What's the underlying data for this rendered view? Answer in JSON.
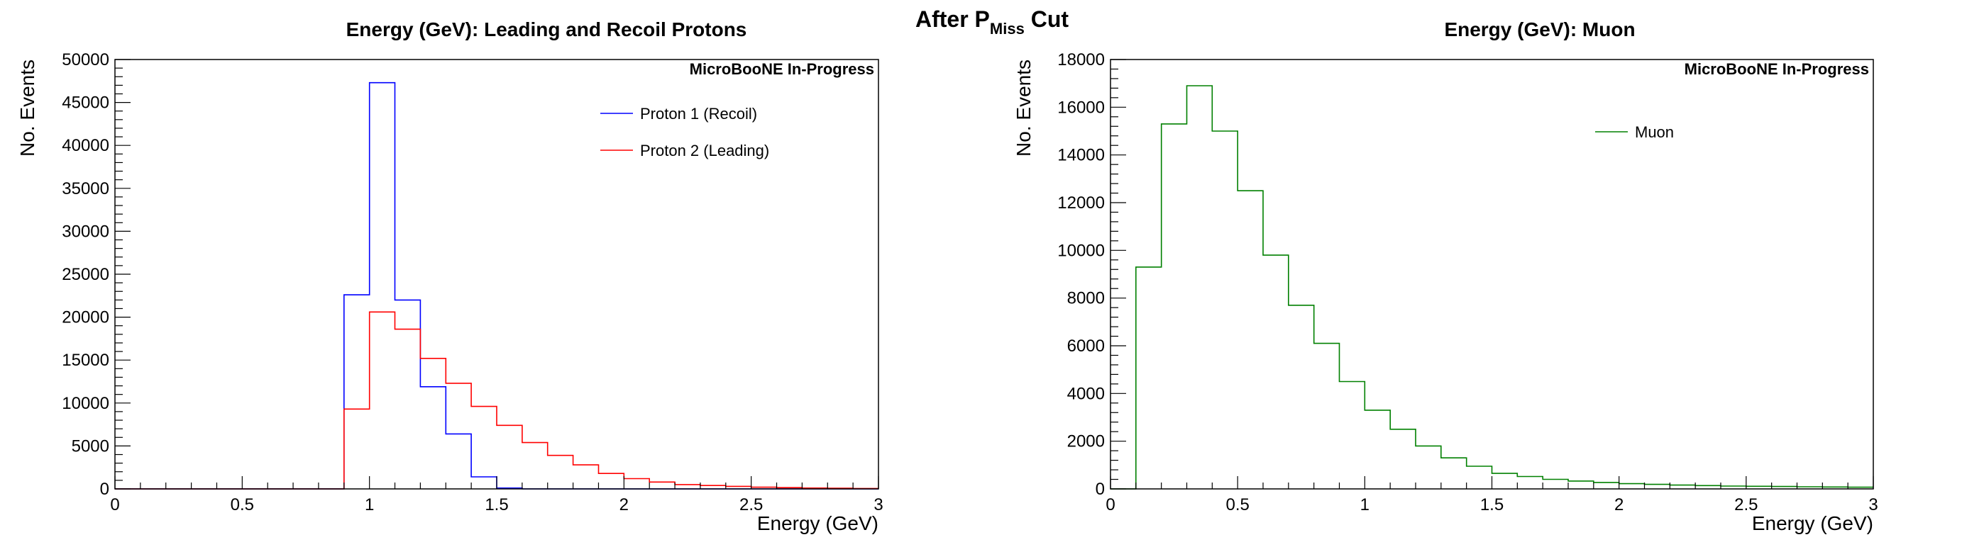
{
  "figure": {
    "title_main": "After P",
    "title_sub": "Miss",
    "title_suffix": " Cut"
  },
  "chart_data": [
    {
      "type": "step-histogram",
      "title": "Energy (GeV): Leading and Recoil Protons",
      "xlabel": "Energy (GeV)",
      "ylabel": "No. Events",
      "annotation": "MicroBooNE In-Progress",
      "xlim": [
        0,
        3
      ],
      "ylim": [
        0,
        50000
      ],
      "xticks": [
        0,
        0.5,
        1,
        1.5,
        2,
        2.5,
        3
      ],
      "xtick_labels": [
        "0",
        "0.5",
        "1",
        "1.5",
        "2",
        "2.5",
        "3"
      ],
      "yticks": [
        0,
        5000,
        10000,
        15000,
        20000,
        25000,
        30000,
        35000,
        40000,
        45000,
        50000
      ],
      "ytick_labels": [
        "0",
        "5000",
        "10000",
        "15000",
        "20000",
        "25000",
        "30000",
        "35000",
        "40000",
        "45000",
        "50000"
      ],
      "grid": false,
      "legend_position": "top-right",
      "bin_edges": [
        0,
        0.1,
        0.2,
        0.3,
        0.4,
        0.5,
        0.6,
        0.7,
        0.8,
        0.9,
        1.0,
        1.1,
        1.2,
        1.3,
        1.4,
        1.5,
        1.6,
        1.7,
        1.8,
        1.9,
        2.0,
        2.1,
        2.2,
        2.3,
        2.4,
        2.5,
        2.6,
        2.7,
        2.8,
        2.9,
        3.0
      ],
      "series": [
        {
          "name": "Proton 1 (Recoil)",
          "color": "#0000ff",
          "values": [
            0,
            0,
            0,
            0,
            0,
            0,
            0,
            0,
            0,
            22600,
            47300,
            22000,
            11900,
            6400,
            1400,
            100,
            0,
            0,
            0,
            0,
            0,
            0,
            0,
            0,
            0,
            0,
            0,
            0,
            0,
            0
          ]
        },
        {
          "name": "Proton 2 (Leading)",
          "color": "#ff0000",
          "values": [
            0,
            0,
            0,
            0,
            0,
            0,
            0,
            0,
            0,
            9300,
            20600,
            18600,
            15200,
            12300,
            9600,
            7400,
            5400,
            3900,
            2800,
            1800,
            1200,
            800,
            500,
            400,
            300,
            200,
            150,
            100,
            80,
            50
          ]
        }
      ]
    },
    {
      "type": "step-histogram",
      "title": "Energy (GeV): Muon",
      "xlabel": "Energy (GeV)",
      "ylabel": "No. Events",
      "annotation": "MicroBooNE In-Progress",
      "xlim": [
        0,
        3
      ],
      "ylim": [
        0,
        18000
      ],
      "xticks": [
        0,
        0.5,
        1,
        1.5,
        2,
        2.5,
        3
      ],
      "xtick_labels": [
        "0",
        "0.5",
        "1",
        "1.5",
        "2",
        "2.5",
        "3"
      ],
      "yticks": [
        0,
        2000,
        4000,
        6000,
        8000,
        10000,
        12000,
        14000,
        16000,
        18000
      ],
      "ytick_labels": [
        "0",
        "2000",
        "4000",
        "6000",
        "8000",
        "10000",
        "12000",
        "14000",
        "16000",
        "18000"
      ],
      "grid": false,
      "legend_position": "top-right",
      "bin_edges": [
        0,
        0.1,
        0.2,
        0.3,
        0.4,
        0.5,
        0.6,
        0.7,
        0.8,
        0.9,
        1.0,
        1.1,
        1.2,
        1.3,
        1.4,
        1.5,
        1.6,
        1.7,
        1.8,
        1.9,
        2.0,
        2.1,
        2.2,
        2.3,
        2.4,
        2.5,
        2.6,
        2.7,
        2.8,
        2.9,
        3.0
      ],
      "series": [
        {
          "name": "Muon",
          "color": "#008000",
          "values": [
            0,
            9300,
            15300,
            16900,
            15000,
            12500,
            9800,
            7700,
            6100,
            4500,
            3300,
            2500,
            1800,
            1300,
            950,
            650,
            520,
            400,
            330,
            270,
            220,
            190,
            160,
            140,
            120,
            110,
            100,
            90,
            80,
            70
          ]
        }
      ]
    }
  ]
}
